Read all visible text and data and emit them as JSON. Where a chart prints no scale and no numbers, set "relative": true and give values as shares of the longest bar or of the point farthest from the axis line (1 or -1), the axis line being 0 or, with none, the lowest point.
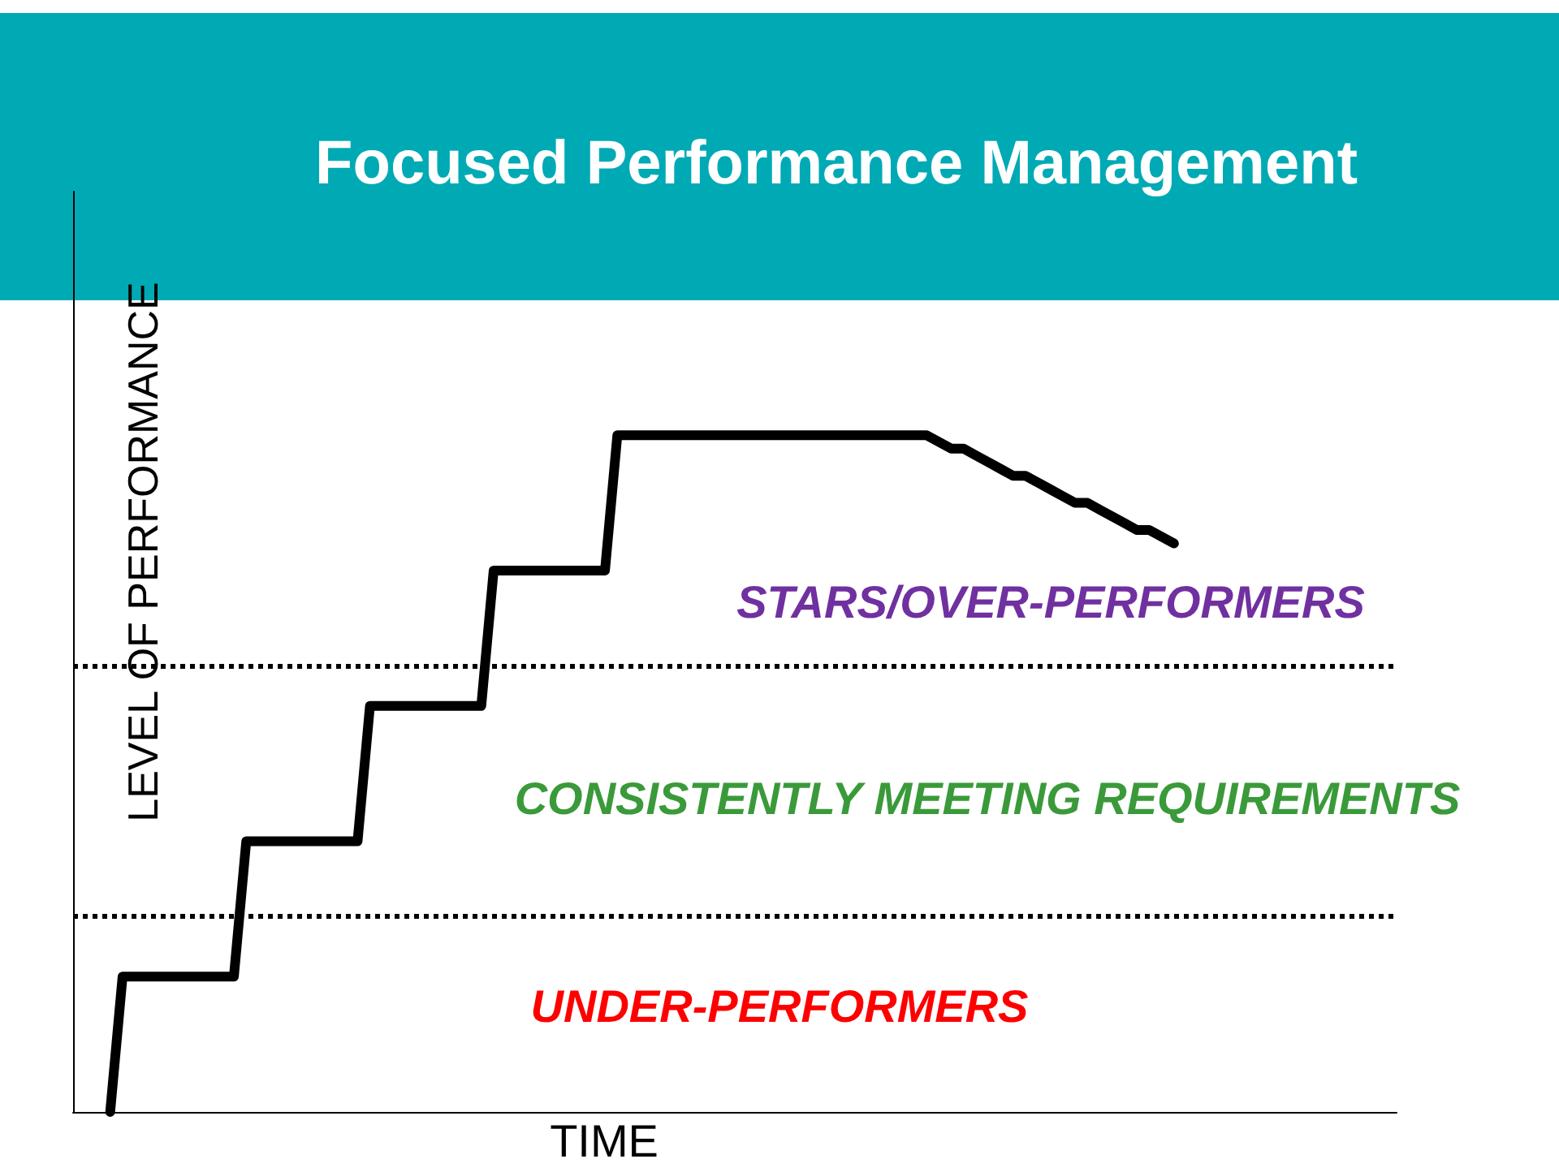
{
  "chart_data": {
    "type": "line",
    "title": "Focused Performance Management",
    "xlabel": "TIME",
    "ylabel": "LEVEL OF PERFORMANCE",
    "relative": true,
    "categories": [
      null,
      null,
      null,
      null,
      null,
      null,
      null,
      null,
      null,
      null,
      null,
      null,
      null,
      null,
      null,
      null,
      null,
      null,
      null,
      null,
      null,
      null,
      null,
      null,
      null,
      null,
      null,
      null,
      null,
      null,
      null,
      null,
      null,
      null,
      null,
      null,
      null,
      null,
      null,
      null,
      null,
      null,
      null,
      null,
      null,
      null,
      null,
      null,
      null,
      null,
      null,
      null,
      null,
      null,
      null,
      null,
      null,
      null,
      null,
      null,
      null,
      null,
      null,
      null,
      null,
      null,
      null,
      null,
      null,
      null,
      null,
      null,
      null,
      null,
      null,
      null,
      null,
      null,
      null,
      null,
      null,
      null,
      null,
      null,
      null,
      null,
      null,
      null,
      null,
      null,
      null,
      null,
      null,
      null,
      null,
      null,
      null,
      null,
      null,
      null,
      null,
      null,
      null,
      null,
      null,
      null,
      null,
      null
    ],
    "series": [
      {
        "color": "#000000",
        "values": [
          null,
          null,
          null,
          0,
          0.2,
          0.2,
          0.2,
          0.2,
          0.2,
          0.2,
          0.2,
          0.2,
          0.2,
          0.2,
          0.4,
          0.4,
          0.4,
          0.4,
          0.4,
          0.4,
          0.4,
          0.4,
          0.4,
          0.4,
          0.6,
          0.6,
          0.6,
          0.6,
          0.6,
          0.6,
          0.6,
          0.6,
          0.6,
          0.6,
          0.8,
          0.8,
          0.8,
          0.8,
          0.8,
          0.8,
          0.8,
          0.8,
          0.8,
          0.8,
          1,
          1,
          1,
          1,
          1,
          1,
          1,
          1,
          1,
          1,
          1,
          1,
          1,
          1,
          1,
          1,
          1,
          1,
          1,
          1,
          1,
          1,
          1,
          1,
          1,
          1,
          0.99,
          0.98,
          0.98,
          0.97,
          0.96,
          0.95,
          0.94,
          0.94,
          0.93,
          0.92,
          0.91,
          0.9,
          0.9,
          0.89,
          0.88,
          0.87,
          0.86,
          0.86,
          0.85,
          0.84,
          null,
          null,
          null,
          null,
          null,
          null,
          null,
          null,
          null,
          null,
          null,
          null,
          null,
          null,
          null,
          null,
          null,
          null
        ]
      }
    ],
    "ref_lines": [
      {
        "axis": "y",
        "value": 0.29,
        "line_style": "dotted"
      },
      {
        "axis": "y",
        "value": 0.66,
        "line_style": "dotted"
      }
    ],
    "annotations": [
      "STARS/OVER-PERFORMERS",
      "CONSISTENTLY MEETING REQUIREMENTS",
      "UNDER-PERFORMERS"
    ],
    "grid": false,
    "marker": "none"
  }
}
